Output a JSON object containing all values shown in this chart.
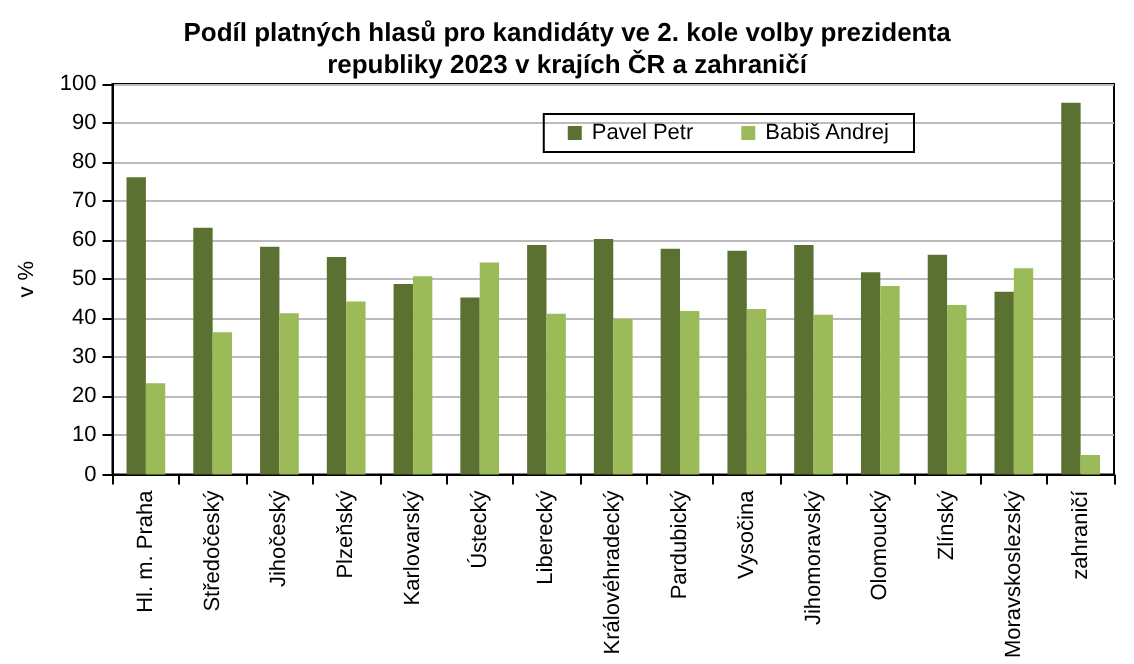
{
  "chart_data": {
    "type": "bar",
    "title": "Podíl platných hlasů pro kandidáty ve 2. kole volby prezidenta\nrepubliky 2023 v krajích ČR a zahraničí",
    "ylabel": "v %",
    "categories": [
      "Hl. m. Praha",
      "Středočeský",
      "Jihočeský",
      "Plzeňský",
      "Karlovarský",
      "Ústecký",
      "Liberecký",
      "Královéhradecký",
      "Pardubický",
      "Vysočina",
      "Jihomoravský",
      "Olomoucký",
      "Zlínský",
      "Moravskoslezský",
      "zahraničí"
    ],
    "series": [
      {
        "name": "Pavel Petr",
        "color": "#5b7132",
        "values": [
          76.1,
          63.2,
          58.3,
          55.7,
          48.8,
          45.3,
          58.8,
          60.3,
          57.8,
          57.3,
          58.8,
          51.8,
          56.3,
          46.8,
          95.2
        ]
      },
      {
        "name": "Babiš Andrej",
        "color": "#9bbb59",
        "values": [
          23.4,
          36.4,
          41.3,
          44.3,
          50.8,
          54.3,
          41.2,
          39.9,
          41.9,
          42.4,
          40.9,
          48.3,
          43.4,
          52.8,
          5.0
        ]
      }
    ],
    "ylim": [
      0,
      100
    ],
    "yticks": [
      0,
      10,
      20,
      30,
      40,
      50,
      60,
      70,
      80,
      90,
      100
    ],
    "grid": "y",
    "legend": "top right"
  }
}
